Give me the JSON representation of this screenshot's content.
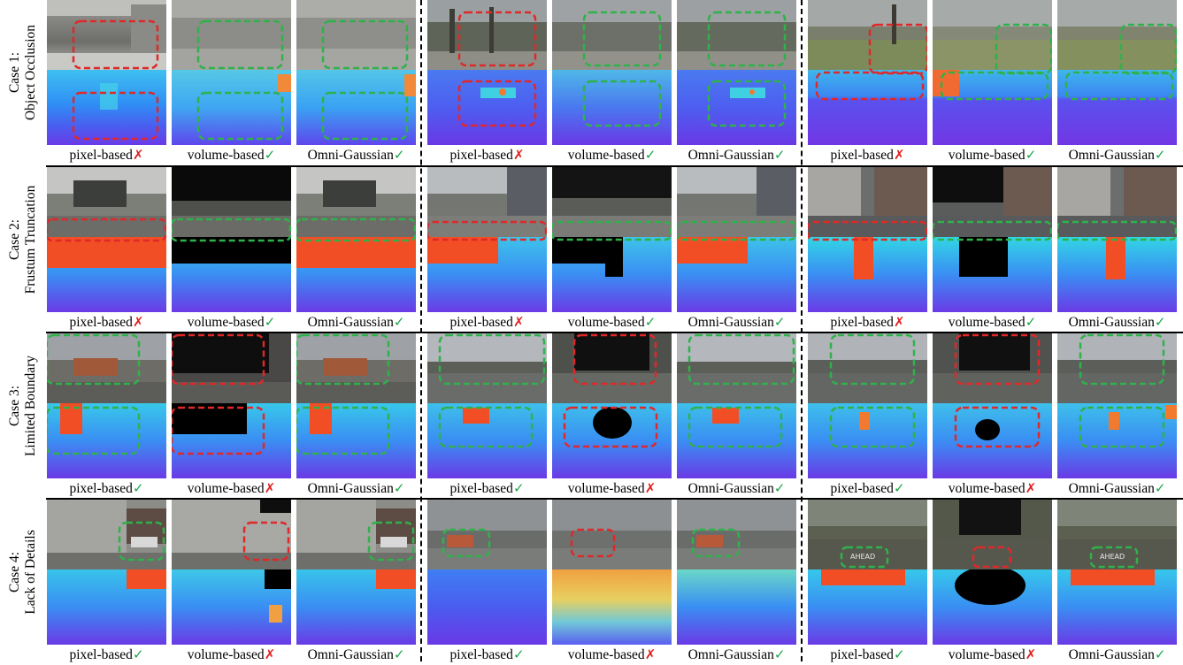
{
  "cases": [
    {
      "label_line1": "Case 1:",
      "label_line2": "Object Occlusion",
      "groups": [
        {
          "captions": [
            {
              "text": "pixel-based",
              "mark": "✗",
              "ok": false
            },
            {
              "text": "volume-based",
              "mark": "✓",
              "ok": true
            },
            {
              "text": "Omni-Gaussian",
              "mark": "✓",
              "ok": true
            }
          ]
        },
        {
          "captions": [
            {
              "text": "pixel-based",
              "mark": "✗",
              "ok": false
            },
            {
              "text": "volume-based",
              "mark": "✓",
              "ok": true
            },
            {
              "text": "Omni-Gaussian",
              "mark": "✓",
              "ok": true
            }
          ]
        },
        {
          "captions": [
            {
              "text": "pixel-based",
              "mark": "✗",
              "ok": false
            },
            {
              "text": "volume-based",
              "mark": "✓",
              "ok": true
            },
            {
              "text": "Omni-Gaussian",
              "mark": "✓",
              "ok": true
            }
          ]
        }
      ]
    },
    {
      "label_line1": "Case 2:",
      "label_line2": "Frustum Truncation",
      "groups": [
        {
          "captions": [
            {
              "text": "pixel-based",
              "mark": "✗",
              "ok": false
            },
            {
              "text": "volume-based",
              "mark": "✓",
              "ok": true
            },
            {
              "text": "Omni-Gaussian",
              "mark": "✓",
              "ok": true
            }
          ]
        },
        {
          "captions": [
            {
              "text": "pixel-based",
              "mark": "✗",
              "ok": false
            },
            {
              "text": "volume-based",
              "mark": "✓",
              "ok": true
            },
            {
              "text": "Omni-Gaussian",
              "mark": "✓",
              "ok": true
            }
          ]
        },
        {
          "captions": [
            {
              "text": "pixel-based",
              "mark": "✗",
              "ok": false
            },
            {
              "text": "volume-based",
              "mark": "✓",
              "ok": true
            },
            {
              "text": "Omni-Gaussian",
              "mark": "✓",
              "ok": true
            }
          ]
        }
      ]
    },
    {
      "label_line1": "Case 3:",
      "label_line2": "Limited Boundary",
      "groups": [
        {
          "captions": [
            {
              "text": "pixel-based",
              "mark": "✓",
              "ok": true
            },
            {
              "text": "volume-based",
              "mark": "✗",
              "ok": false
            },
            {
              "text": "Omni-Gaussian",
              "mark": "✓",
              "ok": true
            }
          ]
        },
        {
          "captions": [
            {
              "text": "pixel-based",
              "mark": "✓",
              "ok": true
            },
            {
              "text": "volume-based",
              "mark": "✗",
              "ok": false
            },
            {
              "text": "Omni-Gaussian",
              "mark": "✓",
              "ok": true
            }
          ]
        },
        {
          "captions": [
            {
              "text": "pixel-based",
              "mark": "✓",
              "ok": true
            },
            {
              "text": "volume-based",
              "mark": "✗",
              "ok": false
            },
            {
              "text": "Omni-Gaussian",
              "mark": "✓",
              "ok": true
            }
          ]
        }
      ]
    },
    {
      "label_line1": "Case 4:",
      "label_line2": "Lack of Details",
      "groups": [
        {
          "captions": [
            {
              "text": "pixel-based",
              "mark": "✓",
              "ok": true
            },
            {
              "text": "volume-based",
              "mark": "✗",
              "ok": false
            },
            {
              "text": "Omni-Gaussian",
              "mark": "✓",
              "ok": true
            }
          ]
        },
        {
          "captions": [
            {
              "text": "pixel-based",
              "mark": "✓",
              "ok": true
            },
            {
              "text": "volume-based",
              "mark": "✗",
              "ok": false
            },
            {
              "text": "Omni-Gaussian",
              "mark": "✓",
              "ok": true
            }
          ]
        },
        {
          "captions": [
            {
              "text": "pixel-based",
              "mark": "✓",
              "ok": true
            },
            {
              "text": "volume-based",
              "mark": "✗",
              "ok": false
            },
            {
              "text": "Omni-Gaussian",
              "mark": "✓",
              "ok": true
            }
          ]
        }
      ]
    }
  ],
  "road_marking_text": "AHEAD",
  "colors": {
    "good_mark": "#1aa64a",
    "bad_mark": "#e02020",
    "good_box": "#2fb24a",
    "bad_box": "#e02828"
  }
}
